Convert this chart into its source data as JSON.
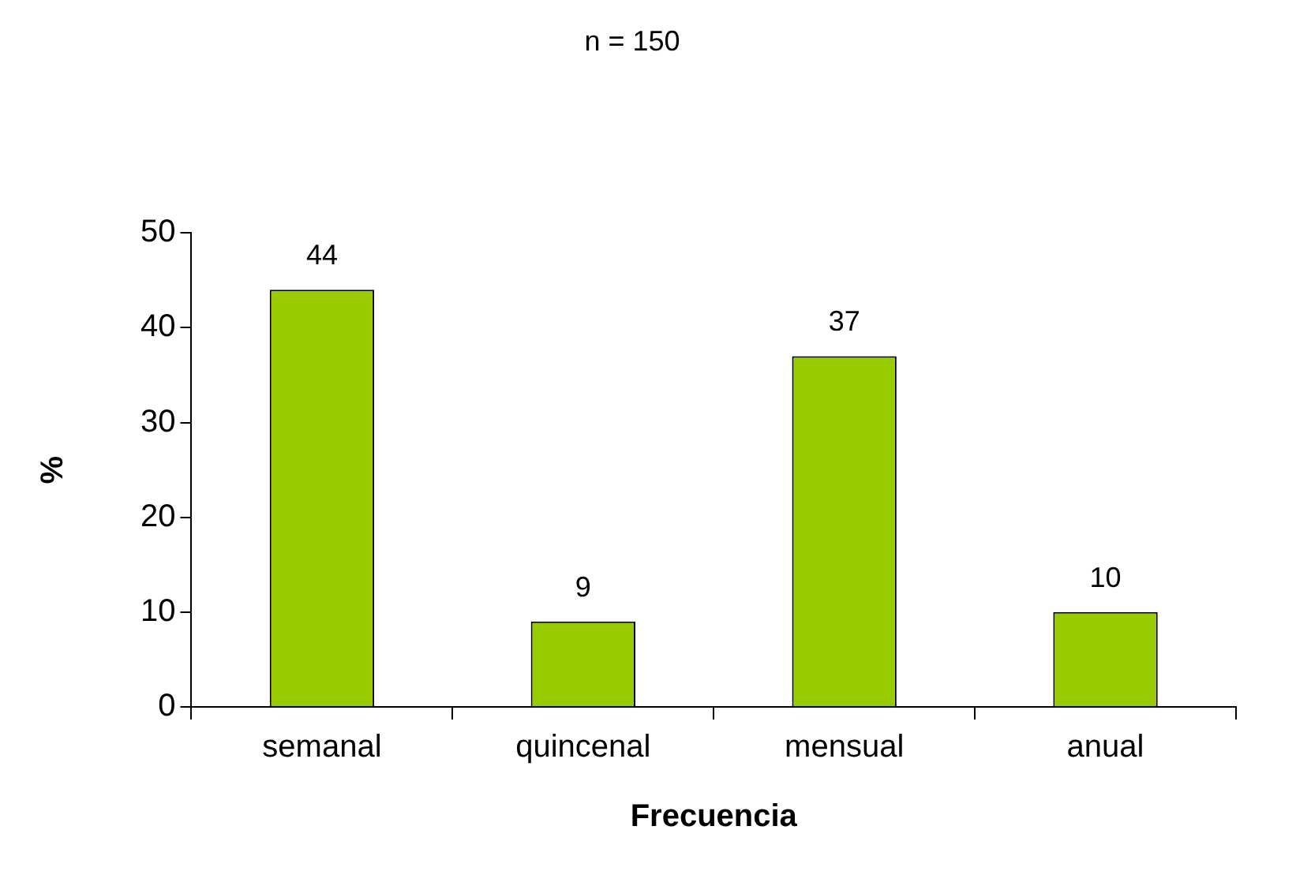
{
  "chart_data": {
    "type": "bar",
    "title": "n = 150",
    "xlabel": "Frecuencia",
    "ylabel": "%",
    "categories": [
      "semanal",
      "quincenal",
      "mensual",
      "anual"
    ],
    "values": [
      44,
      9,
      37,
      10
    ],
    "color": "#99cc00",
    "ylim": [
      0,
      50
    ],
    "yticks": [
      0,
      10,
      20,
      30,
      40,
      50
    ],
    "grid": false,
    "legend": false,
    "data_labels": true
  }
}
